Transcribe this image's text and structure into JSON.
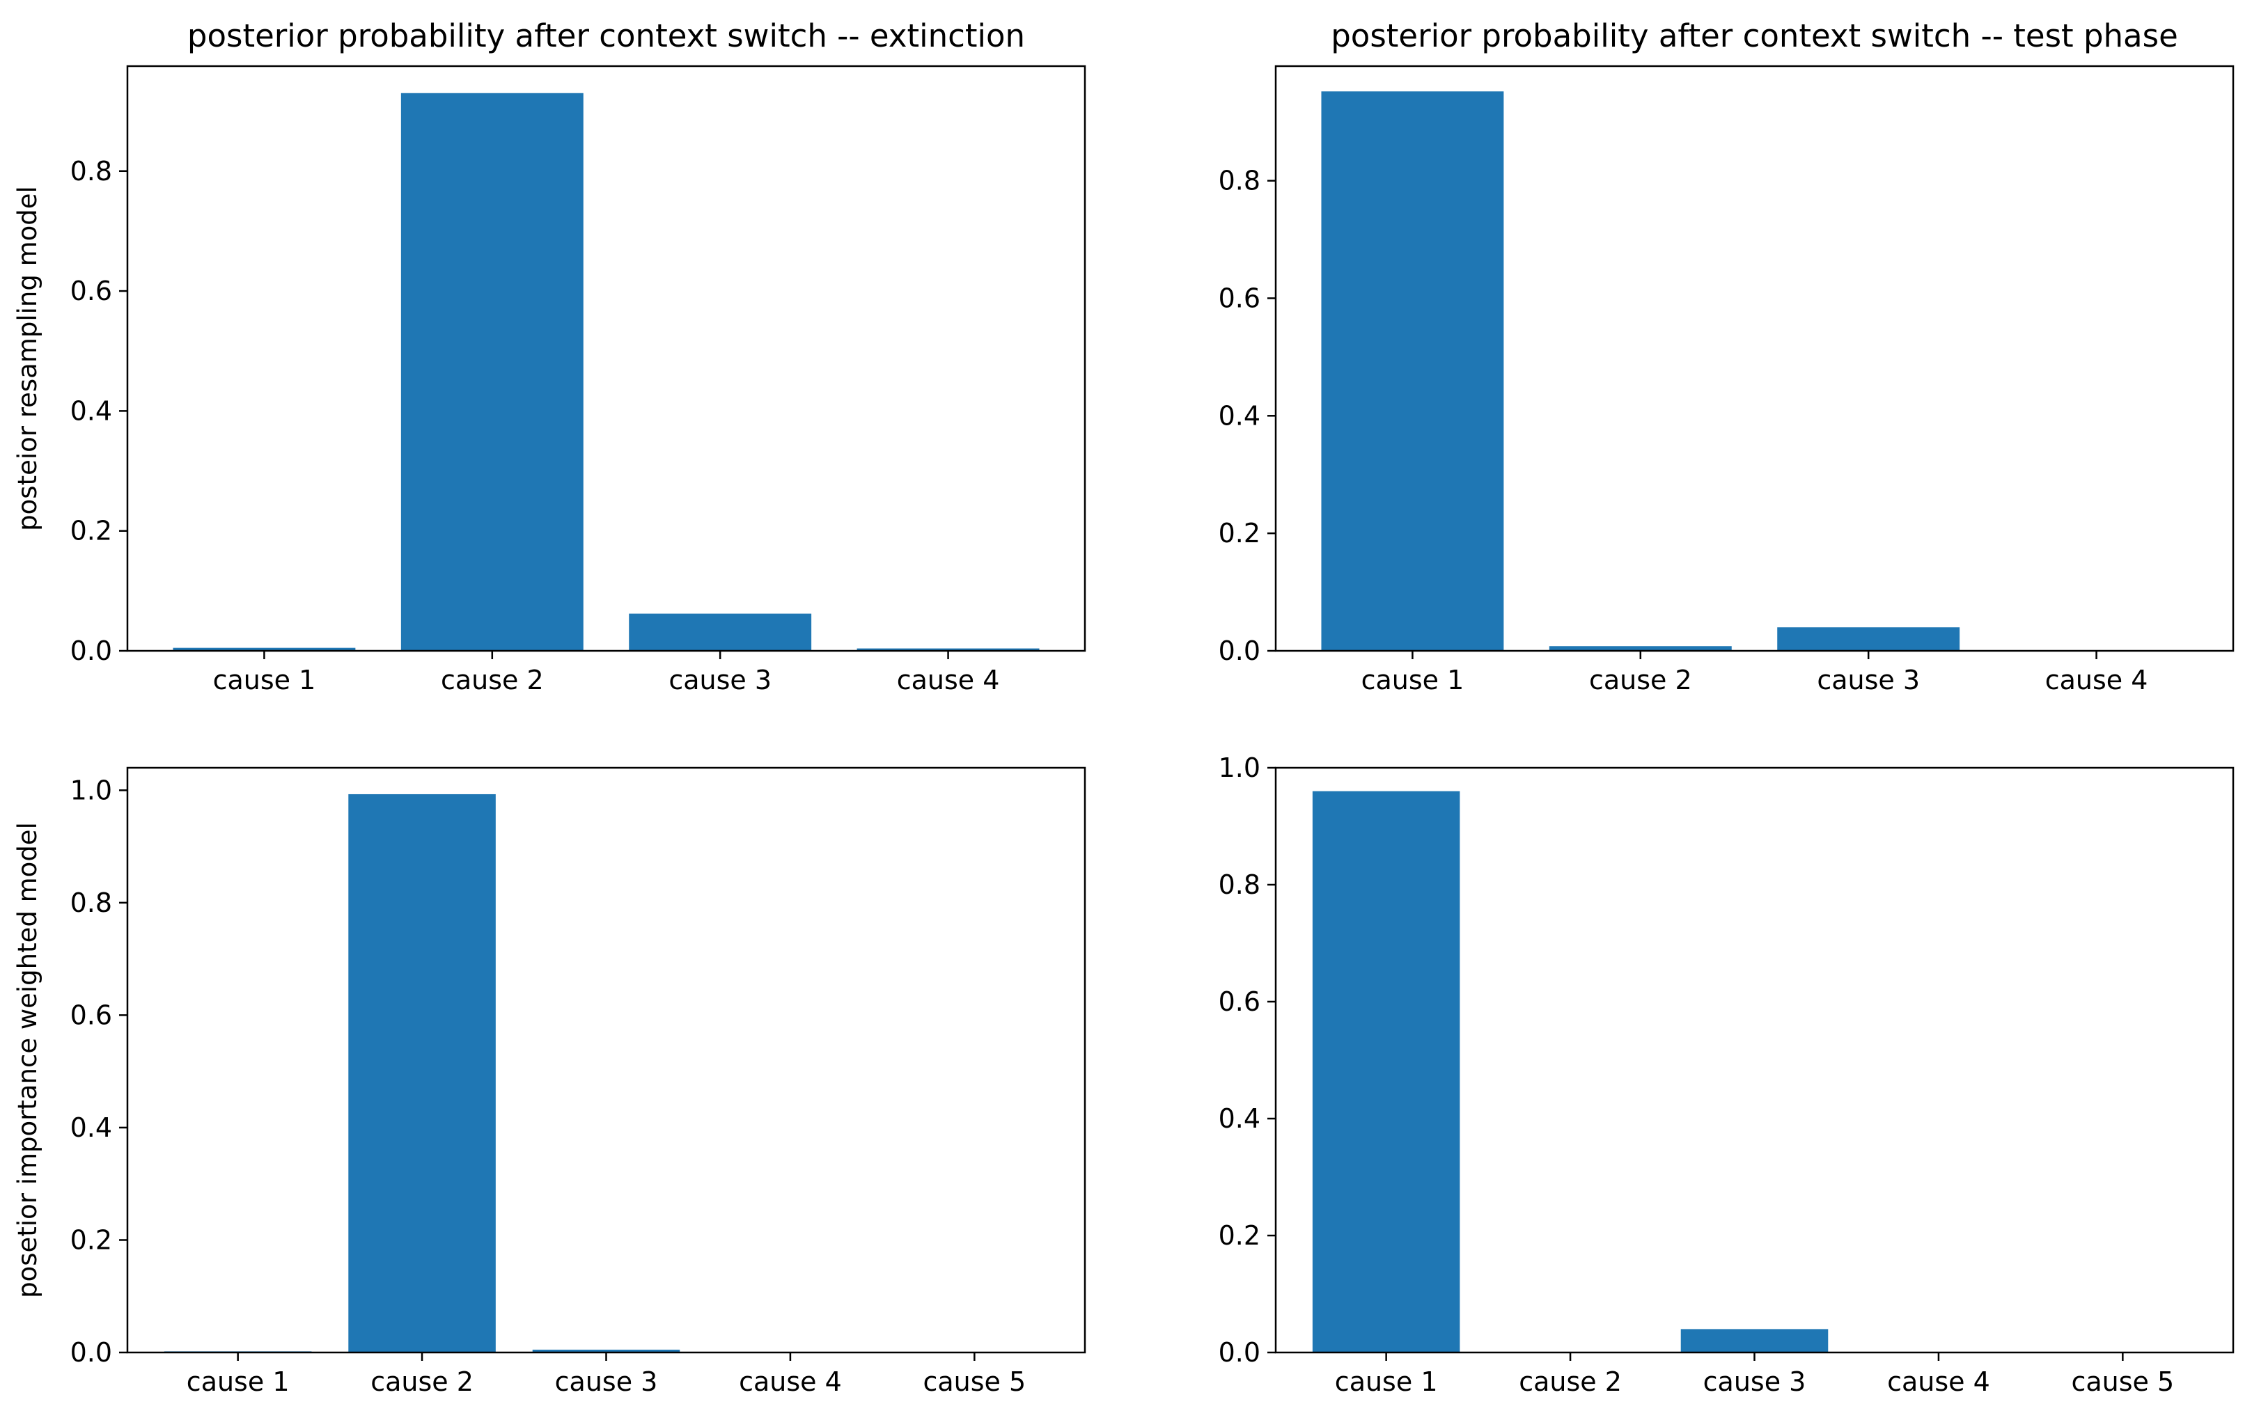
{
  "chart_data": [
    {
      "type": "bar",
      "title": "posterior probability after context switch -- extinction",
      "ylabel": "posteior resampling model",
      "xlabel": "",
      "categories": [
        "cause 1",
        "cause 2",
        "cause 3",
        "cause 4"
      ],
      "values": [
        0.005,
        0.93,
        0.062,
        0.004
      ],
      "ylim": [
        0,
        0.975
      ],
      "yticks": [
        0.0,
        0.2,
        0.4,
        0.6,
        0.8
      ],
      "ytick_labels": [
        "0.0",
        "0.2",
        "0.4",
        "0.6",
        "0.8"
      ],
      "bar_color": "#1f77b4",
      "grid": false,
      "legend": "none"
    },
    {
      "type": "bar",
      "title": "posterior probability after context switch -- test phase",
      "ylabel": "",
      "xlabel": "",
      "categories": [
        "cause 1",
        "cause 2",
        "cause 3",
        "cause 4"
      ],
      "values": [
        0.952,
        0.008,
        0.04,
        0.001
      ],
      "ylim": [
        0,
        0.995
      ],
      "yticks": [
        0.0,
        0.2,
        0.4,
        0.6,
        0.8
      ],
      "ytick_labels": [
        "0.0",
        "0.2",
        "0.4",
        "0.6",
        "0.8"
      ],
      "bar_color": "#1f77b4",
      "grid": false,
      "legend": "none"
    },
    {
      "type": "bar",
      "title": "",
      "ylabel": "posetior importance weighted model",
      "xlabel": "",
      "categories": [
        "cause 1",
        "cause 2",
        "cause 3",
        "cause 4",
        "cause 5"
      ],
      "values": [
        0.002,
        0.993,
        0.005,
        0.0005,
        0.0003
      ],
      "ylim": [
        0,
        1.04
      ],
      "yticks": [
        0.0,
        0.2,
        0.4,
        0.6,
        0.8,
        1.0
      ],
      "ytick_labels": [
        "0.0",
        "0.2",
        "0.4",
        "0.6",
        "0.8",
        "1.0"
      ],
      "bar_color": "#1f77b4",
      "grid": false,
      "legend": "none"
    },
    {
      "type": "bar",
      "title": "",
      "ylabel": "",
      "xlabel": "",
      "categories": [
        "cause 1",
        "cause 2",
        "cause 3",
        "cause 4",
        "cause 5"
      ],
      "values": [
        0.96,
        0.0005,
        0.04,
        0.0003,
        0.0002
      ],
      "ylim": [
        0,
        1.0
      ],
      "yticks": [
        0.0,
        0.2,
        0.4,
        0.6,
        0.8,
        1.0
      ],
      "ytick_labels": [
        "0.0",
        "0.2",
        "0.4",
        "0.6",
        "0.8",
        "1.0"
      ],
      "bar_color": "#1f77b4",
      "grid": false,
      "legend": "none"
    }
  ]
}
